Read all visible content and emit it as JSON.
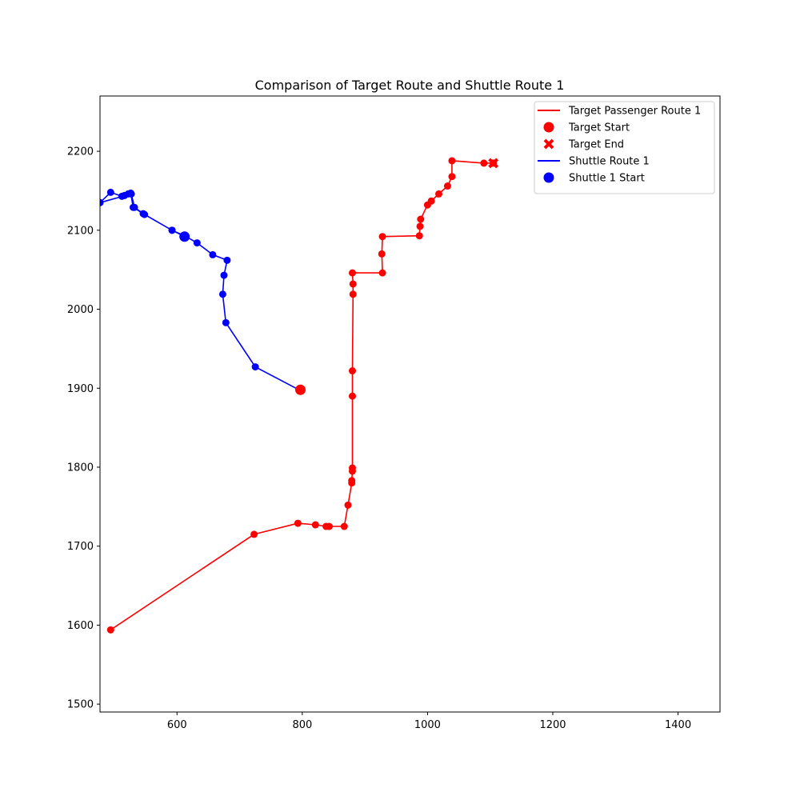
{
  "chart_data": {
    "type": "line",
    "title": "Comparison of Target Route and Shuttle Route 1",
    "xlabel": "",
    "ylabel": "",
    "xlim": [
      477,
      1467
    ],
    "ylim": [
      1490,
      2270
    ],
    "xticks": [
      600,
      800,
      1000,
      1200,
      1400
    ],
    "yticks": [
      1500,
      1600,
      1700,
      1800,
      1900,
      2000,
      2100,
      2200
    ],
    "grid": false,
    "legend_position": "top-right",
    "series": [
      {
        "name": "Target Passenger Route 1",
        "color": "#ff0000",
        "points": [
          [
            494,
            1594
          ],
          [
            723,
            1715
          ],
          [
            793,
            1729
          ],
          [
            821,
            1727
          ],
          [
            838,
            1725
          ],
          [
            843,
            1725
          ],
          [
            867,
            1725
          ],
          [
            873,
            1752
          ],
          [
            879,
            1780
          ],
          [
            879,
            1783
          ],
          [
            880,
            1795
          ],
          [
            880,
            1799
          ],
          [
            880,
            1890
          ],
          [
            880,
            1922
          ],
          [
            881,
            2019
          ],
          [
            881,
            2032
          ],
          [
            880,
            2046
          ],
          [
            928,
            2046
          ],
          [
            927,
            2070
          ],
          [
            928,
            2092
          ],
          [
            987,
            2093
          ],
          [
            988,
            2105
          ],
          [
            989,
            2114
          ],
          [
            1000,
            2132
          ],
          [
            1006,
            2137
          ],
          [
            1018,
            2146
          ],
          [
            1032,
            2156
          ],
          [
            1039,
            2168
          ],
          [
            1039,
            2188
          ],
          [
            1090,
            2185
          ],
          [
            1105,
            2185
          ]
        ]
      },
      {
        "name": "Shuttle Route 1",
        "color": "#0000ff",
        "points": [
          [
            612,
            2092
          ],
          [
            592,
            2100
          ],
          [
            546,
            2121
          ],
          [
            530,
            2129
          ],
          [
            526,
            2147
          ],
          [
            522,
            2146
          ],
          [
            516,
            2144
          ],
          [
            512,
            2143
          ],
          [
            494,
            2148
          ],
          [
            477,
            2135
          ],
          [
            527,
            2146
          ],
          [
            532,
            2129
          ],
          [
            548,
            2120
          ],
          [
            592,
            2100
          ],
          [
            612,
            2093
          ],
          [
            632,
            2084
          ],
          [
            657,
            2069
          ],
          [
            680,
            2062
          ],
          [
            675,
            2043
          ],
          [
            673,
            2019
          ],
          [
            678,
            1983
          ],
          [
            725,
            1927
          ],
          [
            797,
            1897
          ]
        ]
      }
    ],
    "markers": {
      "target_start": {
        "label": "Target Start",
        "x": 797,
        "y": 1898,
        "color": "#ff0000"
      },
      "target_end": {
        "label": "Target End",
        "x": 1105,
        "y": 2185,
        "color": "#ff0000"
      },
      "shuttle_start": {
        "label": "Shuttle 1 Start",
        "x": 612,
        "y": 2092,
        "color": "#0000ff"
      }
    },
    "legend": [
      {
        "label": "Target Passenger Route 1",
        "kind": "line",
        "color": "#ff0000"
      },
      {
        "label": "Target Start",
        "kind": "circle",
        "color": "#ff0000"
      },
      {
        "label": "Target End",
        "kind": "x",
        "color": "#ff0000"
      },
      {
        "label": "Shuttle Route 1",
        "kind": "line",
        "color": "#0000ff"
      },
      {
        "label": "Shuttle 1 Start",
        "kind": "circle",
        "color": "#0000ff"
      }
    ]
  }
}
